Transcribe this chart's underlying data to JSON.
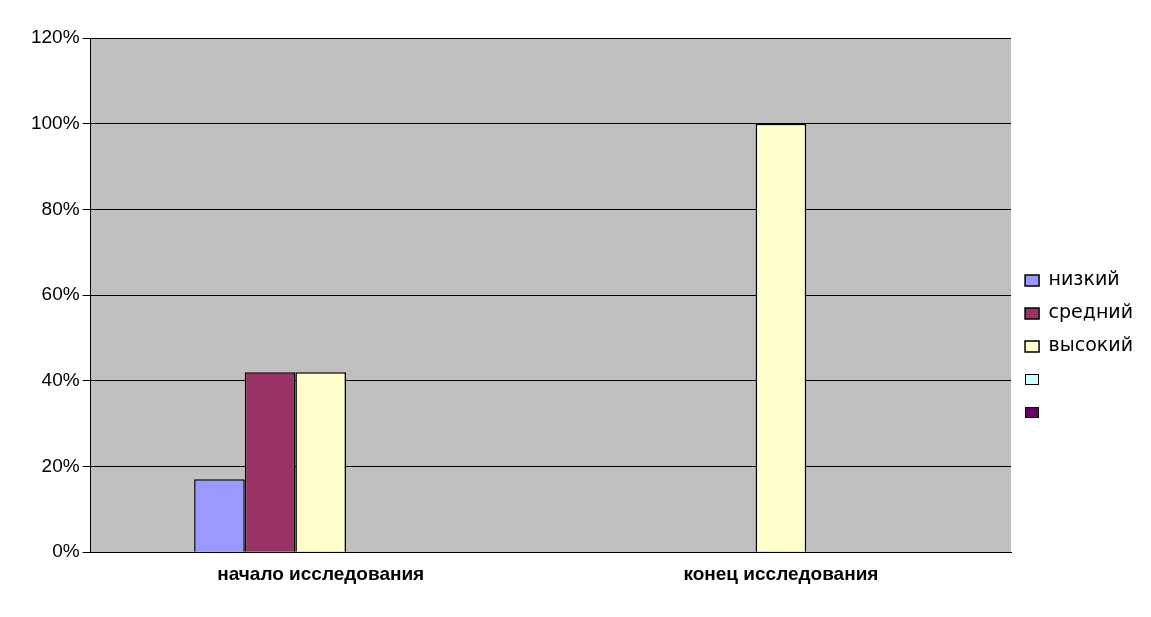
{
  "chart_data": {
    "type": "bar",
    "categories": [
      "начало исследования",
      "конец исследования"
    ],
    "series": [
      {
        "name": "низкий",
        "color": "#9999ff",
        "values": [
          17,
          0
        ]
      },
      {
        "name": "средний",
        "color": "#993366",
        "values": [
          42,
          0
        ]
      },
      {
        "name": "высокий",
        "color": "#ffffcc",
        "values": [
          42,
          100
        ]
      },
      {
        "color": "#ccffff",
        "values": [
          null,
          null
        ]
      },
      {
        "color": "#660066",
        "values": [
          null,
          null
        ]
      }
    ],
    "ylim": [
      0,
      120
    ],
    "yticks": [
      {
        "value": 0,
        "label": "0%"
      },
      {
        "value": 20,
        "label": "20%"
      },
      {
        "value": 40,
        "label": "40%"
      },
      {
        "value": 60,
        "label": "60%"
      },
      {
        "value": 80,
        "label": "80%"
      },
      {
        "value": 100,
        "label": "100%"
      },
      {
        "value": 120,
        "label": "120%"
      }
    ],
    "grid": "y",
    "legend": "right"
  }
}
